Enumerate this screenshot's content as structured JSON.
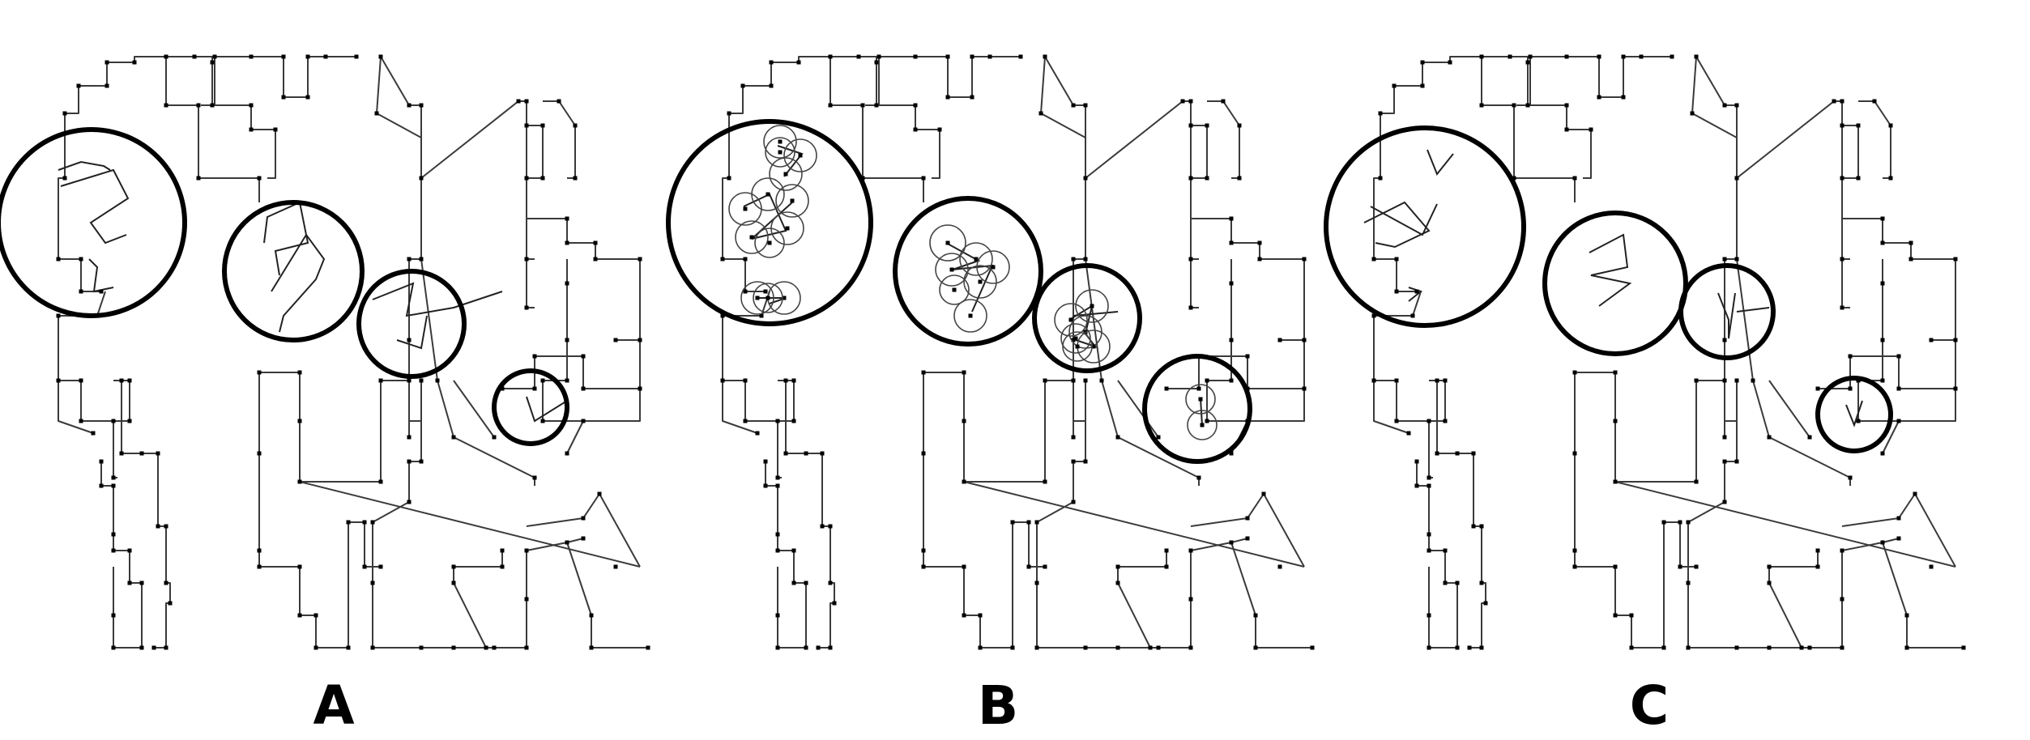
{
  "panels": [
    {
      "id": "A",
      "label": "A"
    },
    {
      "id": "B",
      "label": "B"
    },
    {
      "id": "C",
      "label": "C"
    }
  ]
}
